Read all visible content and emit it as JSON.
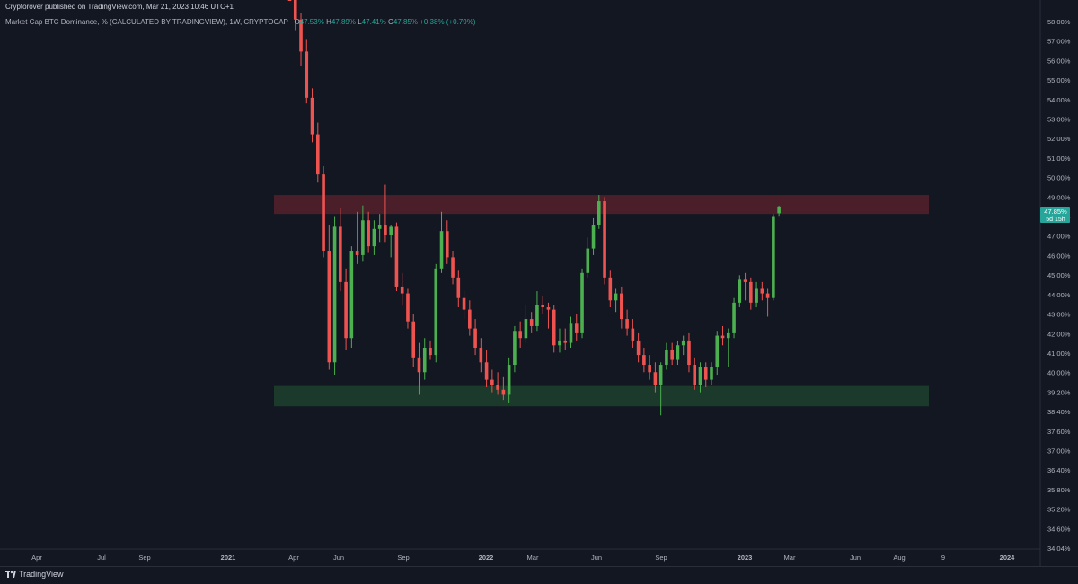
{
  "header": {
    "publisher": "Cryptorover published on TradingView.com, Mar 21, 2023 10:46 UTC+1"
  },
  "legend": {
    "symbol": "Market Cap BTC Dominance, % (CALCULATED BY TRADINGVIEW), 1W, CRYPTOCAP",
    "o_label": "O",
    "o_value": "47.53%",
    "h_label": "H",
    "h_value": "47.89%",
    "l_label": "L",
    "l_value": "47.41%",
    "c_label": "C",
    "c_value": "47.85%",
    "change": "+0.38% (+0.79%)"
  },
  "price_tag": {
    "value": "47.85%",
    "countdown": "5d 15h"
  },
  "brand": "TradingView",
  "colors": {
    "background": "#131722",
    "up": "#26a69a",
    "up_candle": "#4caf50",
    "down": "#ef5350",
    "axis_text": "#b2b5be",
    "resistance_zone": "#4a1f2a",
    "support_zone": "#1c3a2b"
  },
  "chart_data": {
    "type": "candlestick",
    "interval": "1W",
    "y_scale": "log",
    "y_ticks": [
      "58.00%",
      "57.00%",
      "56.00%",
      "55.00%",
      "54.00%",
      "53.00%",
      "52.00%",
      "51.00%",
      "50.00%",
      "49.00%",
      "48.00%",
      "47.00%",
      "46.00%",
      "45.00%",
      "44.00%",
      "43.00%",
      "42.00%",
      "41.00%",
      "40.00%",
      "39.20%",
      "38.40%",
      "37.60%",
      "37.00%",
      "36.40%",
      "35.80%",
      "35.20%",
      "34.60%",
      "34.04%"
    ],
    "x_ticks": [
      "Apr",
      "Jul",
      "Sep",
      "2021",
      "Apr",
      "Jun",
      "Sep",
      "2022",
      "Mar",
      "Jun",
      "Sep",
      "2023",
      "Mar",
      "Jun",
      "Aug",
      "9",
      "2024"
    ],
    "zones": [
      {
        "name": "resistance",
        "low": 47.5,
        "high": 48.4
      },
      {
        "name": "support",
        "low": 39.25,
        "high": 40.05
      }
    ],
    "candles": [
      {
        "o": 61.2,
        "h": 62.0,
        "l": 60.0,
        "c": 60.6
      },
      {
        "o": 60.6,
        "h": 61.5,
        "l": 57.0,
        "c": 57.6
      },
      {
        "o": 57.6,
        "h": 58.0,
        "l": 55.0,
        "c": 55.8
      },
      {
        "o": 55.8,
        "h": 56.5,
        "l": 53.0,
        "c": 53.3
      },
      {
        "o": 53.3,
        "h": 53.8,
        "l": 51.0,
        "c": 51.4
      },
      {
        "o": 51.4,
        "h": 52.0,
        "l": 49.0,
        "c": 49.4
      },
      {
        "o": 49.4,
        "h": 49.8,
        "l": 45.5,
        "c": 45.8
      },
      {
        "o": 45.8,
        "h": 47.0,
        "l": 40.7,
        "c": 41.0
      },
      {
        "o": 41.0,
        "h": 47.4,
        "l": 40.5,
        "c": 46.9
      },
      {
        "o": 46.9,
        "h": 47.8,
        "l": 44.0,
        "c": 44.4
      },
      {
        "o": 44.4,
        "h": 45.0,
        "l": 41.5,
        "c": 42.0
      },
      {
        "o": 42.0,
        "h": 46.0,
        "l": 41.6,
        "c": 45.8
      },
      {
        "o": 45.8,
        "h": 47.6,
        "l": 45.2,
        "c": 45.6
      },
      {
        "o": 45.6,
        "h": 47.9,
        "l": 45.3,
        "c": 47.2
      },
      {
        "o": 47.2,
        "h": 47.6,
        "l": 45.7,
        "c": 46.0
      },
      {
        "o": 46.0,
        "h": 47.2,
        "l": 45.6,
        "c": 46.8
      },
      {
        "o": 46.8,
        "h": 47.5,
        "l": 46.2,
        "c": 47.0
      },
      {
        "o": 47.0,
        "h": 48.9,
        "l": 46.2,
        "c": 46.5
      },
      {
        "o": 46.5,
        "h": 47.0,
        "l": 45.5,
        "c": 46.9
      },
      {
        "o": 46.9,
        "h": 47.1,
        "l": 44.0,
        "c": 44.2
      },
      {
        "o": 44.2,
        "h": 44.8,
        "l": 43.4,
        "c": 43.9
      },
      {
        "o": 43.9,
        "h": 44.1,
        "l": 42.4,
        "c": 42.7
      },
      {
        "o": 42.7,
        "h": 43.0,
        "l": 40.8,
        "c": 41.2
      },
      {
        "o": 41.2,
        "h": 41.8,
        "l": 39.7,
        "c": 40.6
      },
      {
        "o": 40.6,
        "h": 42.0,
        "l": 40.3,
        "c": 41.6
      },
      {
        "o": 41.6,
        "h": 41.9,
        "l": 41.1,
        "c": 41.3
      },
      {
        "o": 41.3,
        "h": 45.2,
        "l": 41.0,
        "c": 45.0
      },
      {
        "o": 45.0,
        "h": 47.6,
        "l": 44.8,
        "c": 46.7
      },
      {
        "o": 46.7,
        "h": 47.2,
        "l": 45.2,
        "c": 45.5
      },
      {
        "o": 45.5,
        "h": 45.8,
        "l": 44.3,
        "c": 44.6
      },
      {
        "o": 44.6,
        "h": 44.9,
        "l": 43.3,
        "c": 43.7
      },
      {
        "o": 43.7,
        "h": 44.0,
        "l": 42.8,
        "c": 43.2
      },
      {
        "o": 43.2,
        "h": 43.6,
        "l": 42.1,
        "c": 42.4
      },
      {
        "o": 42.4,
        "h": 42.8,
        "l": 41.3,
        "c": 41.6
      },
      {
        "o": 41.6,
        "h": 42.0,
        "l": 40.6,
        "c": 41.0
      },
      {
        "o": 41.0,
        "h": 41.5,
        "l": 40.0,
        "c": 40.3
      },
      {
        "o": 40.3,
        "h": 40.7,
        "l": 39.8,
        "c": 40.1
      },
      {
        "o": 40.1,
        "h": 40.6,
        "l": 39.7,
        "c": 39.9
      },
      {
        "o": 39.9,
        "h": 40.4,
        "l": 39.5,
        "c": 39.7
      },
      {
        "o": 39.7,
        "h": 41.2,
        "l": 39.4,
        "c": 40.9
      },
      {
        "o": 40.9,
        "h": 42.5,
        "l": 40.6,
        "c": 42.3
      },
      {
        "o": 42.3,
        "h": 42.7,
        "l": 41.6,
        "c": 42.0
      },
      {
        "o": 42.0,
        "h": 43.4,
        "l": 41.8,
        "c": 42.8
      },
      {
        "o": 42.8,
        "h": 43.1,
        "l": 42.2,
        "c": 42.5
      },
      {
        "o": 42.5,
        "h": 44.0,
        "l": 42.3,
        "c": 43.4
      },
      {
        "o": 43.4,
        "h": 43.8,
        "l": 43.0,
        "c": 43.3
      },
      {
        "o": 43.3,
        "h": 43.5,
        "l": 42.4,
        "c": 43.2
      },
      {
        "o": 43.2,
        "h": 43.4,
        "l": 41.4,
        "c": 41.7
      },
      {
        "o": 41.7,
        "h": 42.4,
        "l": 41.4,
        "c": 41.9
      },
      {
        "o": 41.9,
        "h": 42.4,
        "l": 41.5,
        "c": 41.8
      },
      {
        "o": 41.8,
        "h": 42.9,
        "l": 41.6,
        "c": 42.6
      },
      {
        "o": 42.6,
        "h": 43.0,
        "l": 41.9,
        "c": 42.2
      },
      {
        "o": 42.2,
        "h": 45.0,
        "l": 42.0,
        "c": 44.8
      },
      {
        "o": 44.8,
        "h": 46.4,
        "l": 44.6,
        "c": 45.9
      },
      {
        "o": 45.9,
        "h": 47.3,
        "l": 45.6,
        "c": 47.0
      },
      {
        "o": 47.0,
        "h": 48.4,
        "l": 46.8,
        "c": 48.1
      },
      {
        "o": 48.1,
        "h": 48.3,
        "l": 44.3,
        "c": 44.6
      },
      {
        "o": 44.6,
        "h": 44.9,
        "l": 43.3,
        "c": 43.6
      },
      {
        "o": 43.6,
        "h": 44.1,
        "l": 43.1,
        "c": 43.9
      },
      {
        "o": 43.9,
        "h": 44.2,
        "l": 42.4,
        "c": 42.8
      },
      {
        "o": 42.8,
        "h": 43.2,
        "l": 42.1,
        "c": 42.4
      },
      {
        "o": 42.4,
        "h": 42.8,
        "l": 41.6,
        "c": 41.9
      },
      {
        "o": 41.9,
        "h": 42.2,
        "l": 41.0,
        "c": 41.3
      },
      {
        "o": 41.3,
        "h": 41.6,
        "l": 40.6,
        "c": 40.9
      },
      {
        "o": 40.9,
        "h": 41.3,
        "l": 40.3,
        "c": 40.6
      },
      {
        "o": 40.6,
        "h": 41.0,
        "l": 39.8,
        "c": 40.1
      },
      {
        "o": 40.1,
        "h": 41.0,
        "l": 38.9,
        "c": 40.9
      },
      {
        "o": 40.9,
        "h": 41.8,
        "l": 40.7,
        "c": 41.5
      },
      {
        "o": 41.5,
        "h": 41.8,
        "l": 40.9,
        "c": 41.1
      },
      {
        "o": 41.1,
        "h": 41.9,
        "l": 40.9,
        "c": 41.7
      },
      {
        "o": 41.7,
        "h": 42.1,
        "l": 41.3,
        "c": 41.9
      },
      {
        "o": 41.9,
        "h": 42.2,
        "l": 40.6,
        "c": 40.9
      },
      {
        "o": 40.9,
        "h": 41.2,
        "l": 39.9,
        "c": 40.1
      },
      {
        "o": 40.1,
        "h": 41.0,
        "l": 39.8,
        "c": 40.8
      },
      {
        "o": 40.8,
        "h": 41.0,
        "l": 40.0,
        "c": 40.3
      },
      {
        "o": 40.3,
        "h": 41.0,
        "l": 40.1,
        "c": 40.8
      },
      {
        "o": 40.8,
        "h": 42.3,
        "l": 40.5,
        "c": 42.1
      },
      {
        "o": 42.1,
        "h": 42.5,
        "l": 41.7,
        "c": 42.0
      },
      {
        "o": 42.0,
        "h": 42.4,
        "l": 40.8,
        "c": 42.2
      },
      {
        "o": 42.2,
        "h": 43.7,
        "l": 42.0,
        "c": 43.5
      },
      {
        "o": 43.5,
        "h": 44.7,
        "l": 43.3,
        "c": 44.5
      },
      {
        "o": 44.5,
        "h": 44.8,
        "l": 43.6,
        "c": 44.4
      },
      {
        "o": 44.4,
        "h": 44.6,
        "l": 43.2,
        "c": 43.5
      },
      {
        "o": 43.5,
        "h": 44.4,
        "l": 43.3,
        "c": 44.1
      },
      {
        "o": 44.1,
        "h": 44.4,
        "l": 43.6,
        "c": 43.9
      },
      {
        "o": 43.9,
        "h": 44.1,
        "l": 42.9,
        "c": 43.7
      },
      {
        "o": 43.7,
        "h": 47.5,
        "l": 43.6,
        "c": 47.4
      },
      {
        "o": 47.53,
        "h": 47.89,
        "l": 47.41,
        "c": 47.85
      }
    ]
  }
}
